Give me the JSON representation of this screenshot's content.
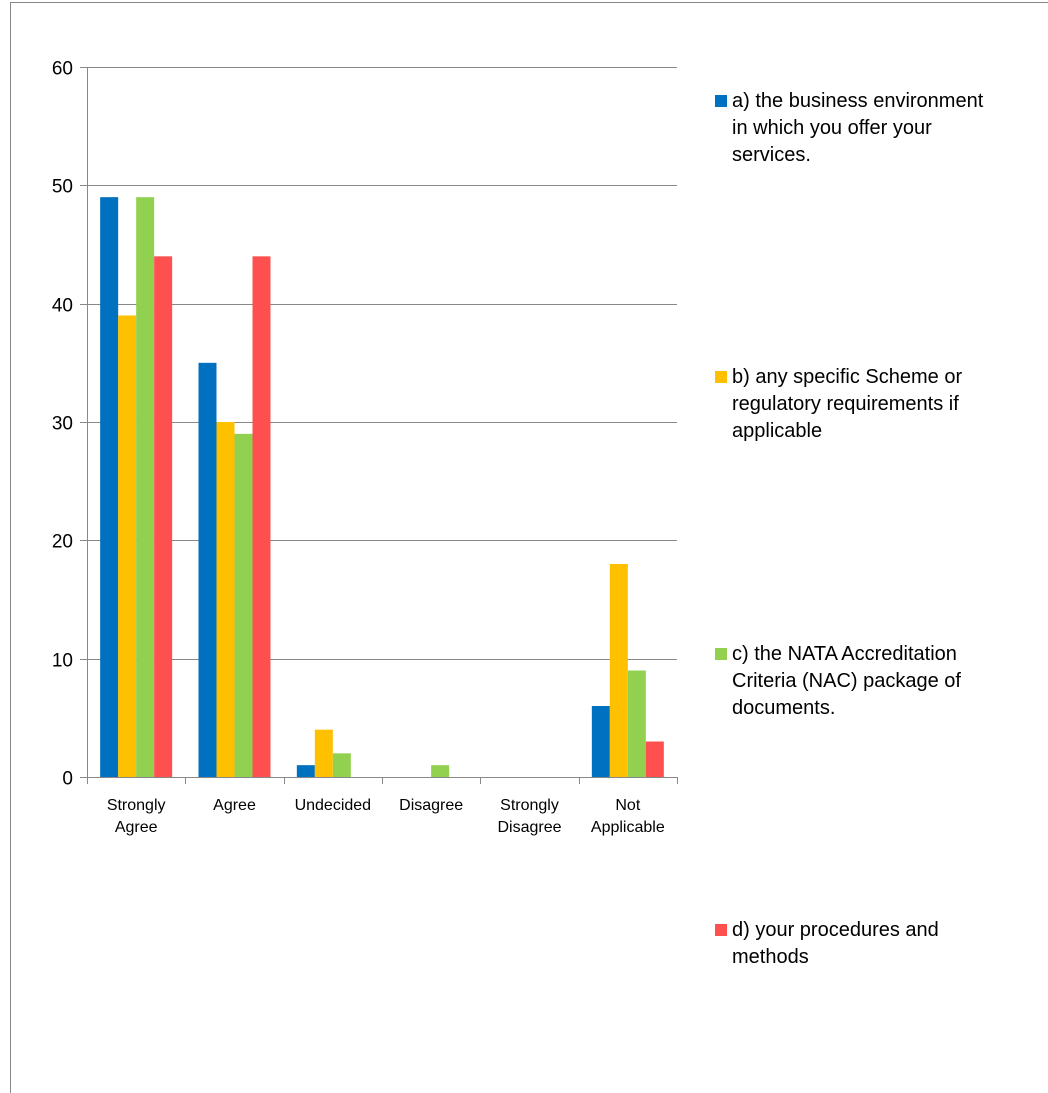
{
  "chart_data": {
    "type": "bar",
    "title": "",
    "xlabel": "",
    "ylabel": "",
    "ylim": [
      0,
      60
    ],
    "yticks": [
      0,
      10,
      20,
      30,
      40,
      50,
      60
    ],
    "grid": true,
    "legend_position": "right",
    "categories": [
      [
        "Strongly",
        "Agree"
      ],
      [
        "Agree"
      ],
      [
        "Undecided"
      ],
      [
        "Disagree"
      ],
      [
        "Strongly",
        "Disagree"
      ],
      [
        "Not",
        "Applicable"
      ]
    ],
    "series": [
      {
        "name": [
          "a) the business environment",
          "in which you offer your",
          "services."
        ],
        "color": "#0070C0",
        "values": [
          49,
          35,
          1,
          0,
          0,
          6
        ]
      },
      {
        "name": [
          "b) any specific Scheme or",
          "regulatory requirements if",
          "applicable"
        ],
        "color": "#FFC000",
        "values": [
          39,
          30,
          4,
          0,
          0,
          18
        ]
      },
      {
        "name": [
          "c) the NATA Accreditation",
          "Criteria (NAC) package of",
          "documents."
        ],
        "color": "#92D050",
        "values": [
          49,
          29,
          2,
          1,
          0,
          9
        ]
      },
      {
        "name": [
          "d) your procedures and",
          "methods"
        ],
        "color": "#FF5050",
        "values": [
          44,
          44,
          0,
          0,
          0,
          3
        ]
      }
    ]
  }
}
